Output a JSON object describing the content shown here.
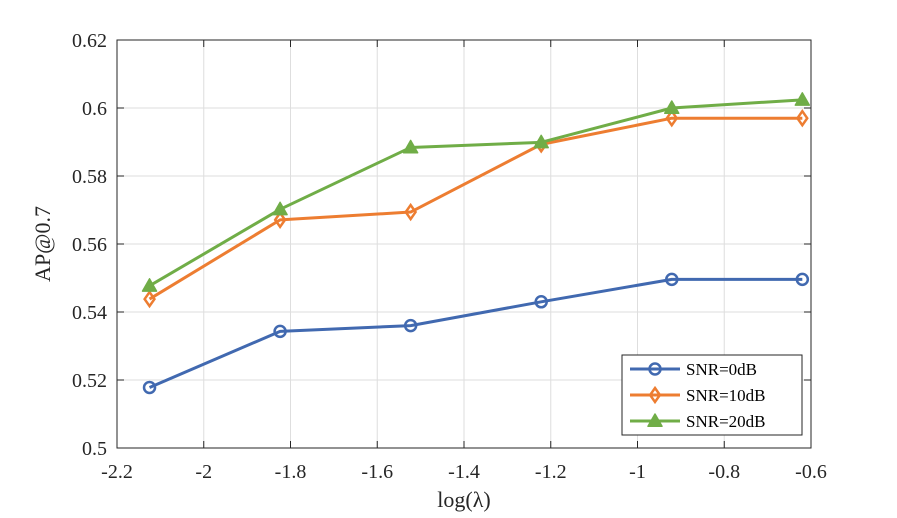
{
  "chart_data": {
    "type": "line",
    "title": "",
    "xlabel": "log(λ)",
    "ylabel": "AP@0.7",
    "xlim": [
      -2.2,
      -0.6
    ],
    "ylim": [
      0.5,
      0.62
    ],
    "xticks": [
      -2.2,
      -2.0,
      -1.8,
      -1.6,
      -1.4,
      -1.2,
      -1.0,
      -0.8,
      -0.6
    ],
    "xtick_labels": [
      "-2.2",
      "-2",
      "-1.8",
      "-1.6",
      "-1.4",
      "-1.2",
      "-1",
      "-0.8",
      "-0.6"
    ],
    "yticks": [
      0.5,
      0.52,
      0.54,
      0.56,
      0.58,
      0.6,
      0.62
    ],
    "ytick_labels": [
      "0.5",
      "0.52",
      "0.54",
      "0.56",
      "0.58",
      "0.6",
      "0.62"
    ],
    "grid": true,
    "legend_position": "bottom-right",
    "x": [
      -2.125,
      -1.824,
      -1.523,
      -1.222,
      -0.921,
      -0.62
    ],
    "series": [
      {
        "name": "SNR=0dB",
        "color": "#4169B0",
        "marker": "circle",
        "values": [
          0.5178,
          0.5343,
          0.536,
          0.543,
          0.5496,
          0.5496
        ]
      },
      {
        "name": "SNR=10dB",
        "color": "#ED7D31",
        "marker": "diamond",
        "values": [
          0.5438,
          0.5671,
          0.5694,
          0.5893,
          0.597,
          0.597
        ]
      },
      {
        "name": "SNR=20dB",
        "color": "#70AD47",
        "marker": "triangle",
        "values": [
          0.5477,
          0.5702,
          0.5884,
          0.5899,
          0.6,
          0.6024
        ]
      }
    ]
  }
}
